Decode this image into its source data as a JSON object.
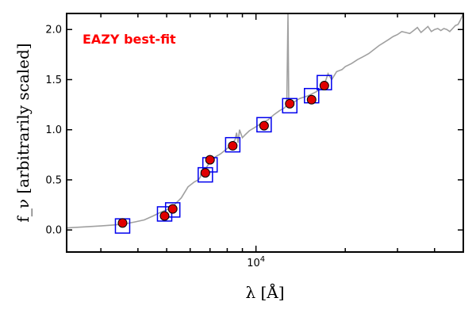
{
  "chart_data": {
    "type": "scatter",
    "title": "",
    "xlabel": "λ [Å]",
    "ylabel": "f_ν [arbitrarily scaled]",
    "xscale": "log",
    "xlim": [
      2300,
      50000
    ],
    "ylim": [
      -0.22,
      2.16
    ],
    "yticks": [
      0.0,
      0.5,
      1.0,
      1.5,
      2.0
    ],
    "ytick_labels": [
      "0.0",
      "0.5",
      "1.0",
      "1.5",
      "2.0"
    ],
    "xtick_labels": [
      {
        "value": 10000,
        "base": "10",
        "exp": "4"
      }
    ],
    "grid": false,
    "annotation": {
      "text": "EAZY best-fit",
      "color": "#ff0000"
    },
    "series": [
      {
        "kind": "template_spectrum",
        "color": "#a0a0a0",
        "x": [
          2300,
          2600,
          3000,
          3300,
          3600,
          3900,
          4200,
          4500,
          4800,
          5000,
          5300,
          5600,
          5900,
          6200,
          6400,
          6500,
          6550,
          6600,
          6800,
          7000,
          7300,
          7600,
          7900,
          8200,
          8500,
          8600,
          8700,
          8800,
          9000,
          9200,
          9500,
          10000,
          10500,
          11000,
          11500,
          12000,
          12500,
          12700,
          12820,
          12900,
          13000,
          13500,
          14000,
          15000,
          15500,
          16000,
          16500,
          17000,
          17500,
          18000,
          18700,
          19500,
          20000,
          21000,
          22000,
          23000,
          24000,
          25000,
          26000,
          27000,
          28000,
          29000,
          30000,
          31000,
          32000,
          33000,
          34000,
          35000,
          36000,
          37000,
          38000,
          39000,
          40000,
          41000,
          42000,
          43000,
          44000,
          45000,
          46000,
          47000,
          48000,
          49000,
          50000
        ],
        "y": [
          0.02,
          0.03,
          0.04,
          0.05,
          0.06,
          0.08,
          0.1,
          0.14,
          0.18,
          0.2,
          0.25,
          0.32,
          0.43,
          0.48,
          0.5,
          0.53,
          0.6,
          0.55,
          0.62,
          0.68,
          0.73,
          0.76,
          0.8,
          0.84,
          0.9,
          0.97,
          0.87,
          1.0,
          0.92,
          0.95,
          0.99,
          1.03,
          1.07,
          1.1,
          1.15,
          1.19,
          1.22,
          1.25,
          2.16,
          1.27,
          1.26,
          1.28,
          1.31,
          1.34,
          1.36,
          1.38,
          1.41,
          1.45,
          1.56,
          1.5,
          1.58,
          1.6,
          1.63,
          1.66,
          1.7,
          1.73,
          1.76,
          1.8,
          1.84,
          1.87,
          1.9,
          1.93,
          1.95,
          1.98,
          1.97,
          1.96,
          1.99,
          2.02,
          1.97,
          2.0,
          2.03,
          1.98,
          2.0,
          2.01,
          1.99,
          2.01,
          2.0,
          1.98,
          2.01,
          2.04,
          2.05,
          2.1,
          2.16
        ]
      },
      {
        "kind": "model_photometry_boxes",
        "color": "#0000ee",
        "x": [
          3550,
          4920,
          5240,
          6750,
          7000,
          8350,
          10650,
          13000,
          15400,
          17000
        ],
        "y": [
          0.04,
          0.16,
          0.2,
          0.55,
          0.65,
          0.85,
          1.05,
          1.24,
          1.34,
          1.47
        ]
      },
      {
        "kind": "observed_photometry",
        "color": "#e00000",
        "x": [
          3550,
          4920,
          5240,
          6750,
          7000,
          8350,
          10650,
          13000,
          15400,
          17000
        ],
        "y": [
          0.07,
          0.14,
          0.21,
          0.57,
          0.7,
          0.84,
          1.04,
          1.26,
          1.3,
          1.44
        ]
      }
    ]
  }
}
